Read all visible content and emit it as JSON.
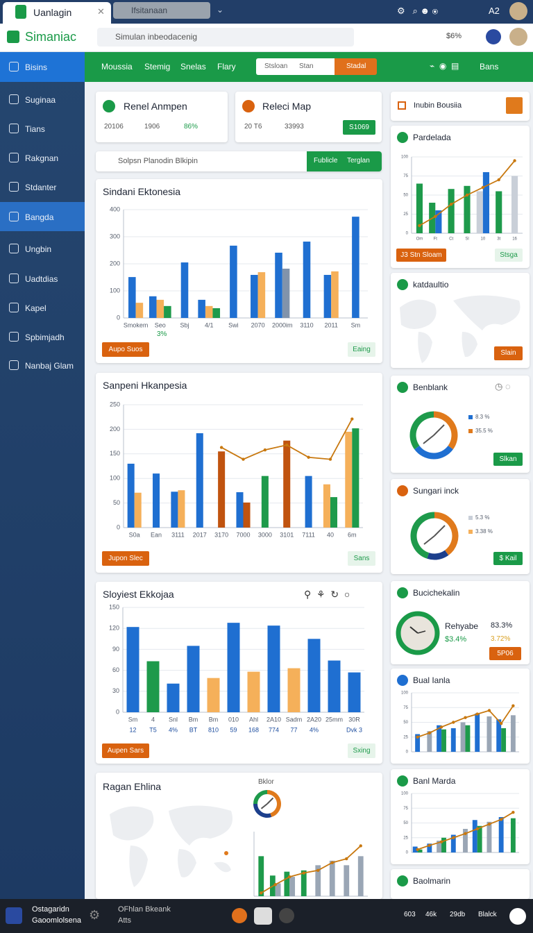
{
  "browser": {
    "tab": "Uanlagin",
    "search": "Ifsitanaan",
    "badge": "A2"
  },
  "header": {
    "brand": "Simaniac",
    "search": "Simulan inbeodacenig",
    "stat": "$6%"
  },
  "sidebar": {
    "items": [
      "Bisins",
      "Suginaa",
      "Tians",
      "Rakgnan",
      "Stdanter",
      "Bangda",
      "Ungbin",
      "Uadtdias",
      "Kapel",
      "Spbimjadh",
      "Nanbaj Glam"
    ]
  },
  "nav": {
    "tabs": [
      "Moussia",
      "Stemig",
      "Snelas",
      "Flary"
    ],
    "search": "Stsloan",
    "filter": "Stan",
    "button": "Stadal",
    "right": "Bans"
  },
  "stats": [
    {
      "title": "Renel Anmpen",
      "values": [
        "20106",
        "1906",
        "86%"
      ]
    },
    {
      "title": "Releci Map",
      "values": [
        "20 T6",
        "33993"
      ],
      "button": "S1069"
    }
  ],
  "filter": {
    "placeholder": "Solpsn Planodin Blkipin",
    "buttons": [
      "Fublicle",
      "Terglan"
    ]
  },
  "chart_data": [
    {
      "type": "bar",
      "title": "Sindani Ektonesia",
      "categories": [
        "Smokem",
        "Seo",
        "Sbj",
        "4/1",
        "Swi",
        "2070",
        "2000im",
        "3110",
        "2011",
        "Sm"
      ],
      "series": [
        {
          "color": "#1f6fd1",
          "values": [
            151,
            80,
            205,
            67,
            267,
            159,
            241,
            282,
            159,
            374
          ]
        },
        {
          "color": "#f5b05a",
          "values": [
            56,
            67,
            null,
            44,
            null,
            169,
            null,
            null,
            172,
            null
          ]
        },
        {
          "color": "#1e9a4b",
          "values": [
            null,
            44,
            null,
            36,
            null,
            null,
            null,
            null,
            null,
            null
          ]
        },
        {
          "color": "#8193ab",
          "values": [
            null,
            null,
            null,
            null,
            null,
            null,
            182,
            null,
            null,
            null
          ]
        }
      ],
      "ylim": [
        0,
        400
      ],
      "yticks": [
        0,
        100,
        200,
        300,
        400
      ],
      "grid": true,
      "annotation": "3%",
      "buttons": [
        "Aupo Suos",
        "Eaing"
      ]
    },
    {
      "type": "bar",
      "title": "Sanpeni Hkanpesia",
      "categories": [
        "S0a",
        "Ean",
        "3111",
        "2017",
        "3170",
        "7000",
        "3000",
        "3101",
        "7111",
        "40",
        "6m"
      ],
      "series": [
        {
          "color": "#1f6fd1",
          "values": [
            130,
            110,
            73,
            192,
            null,
            72,
            null,
            null,
            105,
            null,
            null
          ]
        },
        {
          "color": "#f5b05a",
          "values": [
            71,
            null,
            76,
            null,
            null,
            null,
            null,
            null,
            null,
            88,
            195
          ]
        },
        {
          "color": "#c0530f",
          "values": [
            null,
            null,
            null,
            null,
            155,
            51,
            null,
            177,
            null,
            null,
            null
          ]
        },
        {
          "color": "#1e9a4b",
          "values": [
            null,
            null,
            null,
            null,
            null,
            null,
            105,
            null,
            null,
            62,
            202
          ]
        },
        {
          "type": "line",
          "color": "#c8780f",
          "values": [
            null,
            null,
            null,
            null,
            163,
            139,
            158,
            168,
            143,
            139,
            221
          ]
        }
      ],
      "ylim": [
        0,
        250
      ],
      "yticks": [
        0,
        50,
        100,
        150,
        200,
        250
      ],
      "grid": true,
      "buttons": [
        "Jupon Slec",
        "Sans"
      ]
    },
    {
      "type": "bar",
      "title": "Sloyiest Ekkojaa",
      "categories": [
        "Sm",
        "4",
        "Snl",
        "Bm",
        "Bm",
        "010",
        "Ahl",
        "2A10",
        "Sadm",
        "2A20",
        "25mm",
        "30R"
      ],
      "sublabels": [
        "12",
        "T5",
        "4%",
        "BT",
        "810",
        "59",
        "168",
        "774",
        "77",
        "4%",
        null,
        "Dvk 3"
      ],
      "series": [
        {
          "color": "#1f6fd1",
          "values": [
            122,
            null,
            41,
            95,
            null,
            128,
            null,
            124,
            null,
            105,
            74,
            57
          ]
        },
        {
          "color": "#1e9a4b",
          "values": [
            null,
            73,
            null,
            null,
            null,
            null,
            null,
            null,
            null,
            null,
            null,
            null
          ]
        },
        {
          "color": "#f5b05a",
          "values": [
            null,
            null,
            null,
            null,
            49,
            null,
            58,
            null,
            63,
            null,
            null,
            null
          ]
        }
      ],
      "ylim": [
        0,
        150
      ],
      "yticks": [
        0,
        30,
        60,
        90,
        120,
        150
      ],
      "grid": true,
      "buttons": [
        "Aupen Sars",
        "Sxing"
      ]
    },
    {
      "type": "bar",
      "title": "Ragan Ehlina",
      "categories": [
        null,
        null,
        null,
        null,
        null,
        null,
        null,
        null
      ],
      "series": [
        {
          "color": "#1e9a4b",
          "values": [
            62,
            32,
            38,
            40,
            null,
            null,
            null,
            null
          ]
        },
        {
          "color": "#9aa6b5",
          "values": [
            null,
            20,
            30,
            null,
            48,
            55,
            48,
            62
          ]
        },
        {
          "type": "line",
          "color": "#c8780f",
          "values": [
            5,
            18,
            30,
            36,
            40,
            52,
            58,
            78
          ]
        }
      ],
      "ylim": [
        0,
        100
      ]
    },
    {
      "type": "pie",
      "title": "Bklor",
      "values": [
        45,
        30,
        25
      ],
      "colors": [
        "#e07a1c",
        "#1c3f8c",
        "#1e9a4b"
      ]
    },
    {
      "type": "bar",
      "title": "Pardelada",
      "categories": [
        "Om",
        "Ft",
        "Ct",
        "Sl",
        "10",
        "3t",
        "16"
      ],
      "series": [
        {
          "color": "#1e9a4b",
          "values": [
            65,
            40,
            58,
            62,
            null,
            55,
            null
          ]
        },
        {
          "color": "#c9cfd8",
          "values": [
            null,
            null,
            null,
            null,
            55,
            null,
            75
          ]
        },
        {
          "color": "#1f6fd1",
          "values": [
            null,
            30,
            null,
            null,
            80,
            null,
            null
          ]
        },
        {
          "type": "line",
          "color": "#c8780f",
          "values": [
            10,
            22,
            38,
            50,
            60,
            70,
            95
          ]
        }
      ],
      "ylim": [
        0,
        100
      ],
      "yticks": [
        0,
        25,
        50,
        75,
        100
      ],
      "grid": true,
      "buttons": [
        "J3 Stn Sloam",
        "Stsga"
      ]
    },
    {
      "type": "pie",
      "title": "Benblank",
      "values": [
        35,
        30,
        35
      ],
      "colors": [
        "#e07a1c",
        "#1f6fd1",
        "#1e9a4b"
      ],
      "legend": [
        "8.3 %",
        "35.5 %"
      ],
      "legend_colors": [
        "#1f6fd1",
        "#e07a1c"
      ],
      "button": "Slkan"
    },
    {
      "type": "pie",
      "title": "Sungari inck",
      "values": [
        40,
        15,
        45
      ],
      "colors": [
        "#e07a1c",
        "#1c3f8c",
        "#1e9a4b"
      ],
      "legend": [
        "5.3 %",
        "3.38 %"
      ],
      "legend_colors": [
        "#c9cfd8",
        "#f5b05a"
      ],
      "button": "$ Kail"
    },
    {
      "type": "bar",
      "title": "Bual Ianla",
      "categories": [
        null,
        null,
        null,
        null,
        null,
        null,
        null,
        null,
        null
      ],
      "series": [
        {
          "color": "#1f6fd1",
          "values": [
            30,
            null,
            45,
            40,
            null,
            65,
            null,
            55,
            null
          ]
        },
        {
          "color": "#9aa6b5",
          "values": [
            null,
            35,
            null,
            null,
            50,
            null,
            60,
            null,
            62
          ]
        },
        {
          "color": "#1e9a4b",
          "values": [
            null,
            null,
            38,
            null,
            45,
            null,
            null,
            40,
            null
          ]
        },
        {
          "type": "line",
          "color": "#c8780f",
          "values": [
            25,
            32,
            42,
            50,
            58,
            64,
            70,
            48,
            78
          ]
        }
      ],
      "ylim": [
        0,
        100
      ],
      "yticks": [
        0,
        25,
        50,
        75,
        100
      ],
      "grid": true
    },
    {
      "type": "bar",
      "title": "Banl Marda",
      "categories": [
        null,
        null,
        null,
        null,
        null,
        null,
        null,
        null,
        null
      ],
      "series": [
        {
          "color": "#1f6fd1",
          "values": [
            10,
            15,
            null,
            30,
            null,
            55,
            null,
            60,
            null
          ]
        },
        {
          "color": "#9aa6b5",
          "values": [
            null,
            null,
            20,
            null,
            40,
            null,
            52,
            null,
            null
          ]
        },
        {
          "color": "#1e9a4b",
          "values": [
            5,
            null,
            25,
            null,
            null,
            45,
            null,
            null,
            58
          ]
        },
        {
          "type": "line",
          "color": "#c8780f",
          "values": [
            5,
            12,
            18,
            25,
            32,
            40,
            48,
            56,
            68
          ]
        }
      ],
      "ylim": [
        0,
        100
      ],
      "yticks": [
        0,
        25,
        50,
        75,
        100
      ],
      "grid": true
    }
  ],
  "side": {
    "top": "Inubin Bousiia",
    "map": {
      "title": "katdaultio",
      "button": "Slain"
    },
    "gauge": {
      "title": "Bucichekalin",
      "label": "Rehyabe",
      "values": [
        "83.3%",
        "$3.4%",
        "3.72%"
      ],
      "button": "5P06"
    },
    "last": "Baolmarin"
  },
  "footer": {
    "left": [
      "Ostagaridn",
      "Gaoomlolsena"
    ],
    "mid": [
      "OFhlan Bkeank",
      "Atts"
    ],
    "right": [
      "603",
      "46k",
      "29db",
      "Blalck"
    ]
  }
}
